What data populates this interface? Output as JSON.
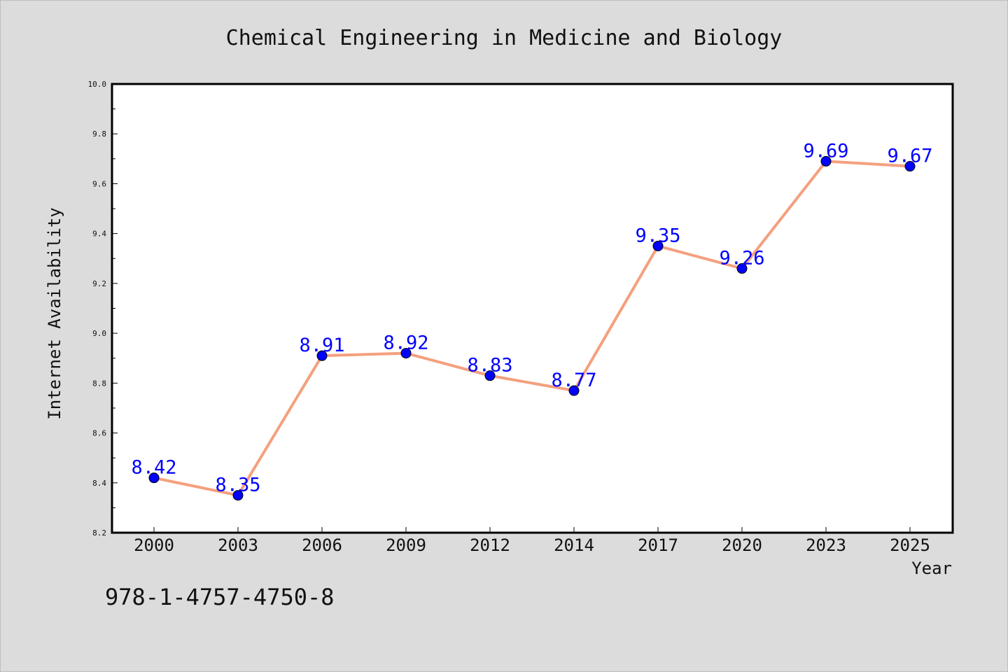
{
  "isbn_text": "978-1-4757-4750-8",
  "colors": {
    "background": "#dcdcdc",
    "plot_area": "#ffffff",
    "line": "#f4a07e",
    "marker": "#0000ff",
    "data_label": "#0000ff"
  },
  "chart_data": {
    "type": "line",
    "title": "Chemical Engineering in Medicine and Biology",
    "xlabel": "Year",
    "ylabel": "Internet Availability",
    "categories": [
      "2000",
      "2003",
      "2006",
      "2009",
      "2012",
      "2014",
      "2017",
      "2020",
      "2023",
      "2025"
    ],
    "series": [
      {
        "values": [
          8.42,
          8.35,
          8.91,
          8.92,
          8.83,
          8.77,
          9.35,
          9.26,
          9.69,
          9.67
        ],
        "data_labels": [
          "8.42",
          "8.35",
          "8.91",
          "8.92",
          "8.83",
          "8.77",
          "9.35",
          "9.26",
          "9.69",
          "9.67"
        ]
      }
    ],
    "ylim": [
      8.2,
      10.0
    ],
    "yticks": [
      "8.2",
      "8.4",
      "8.6",
      "8.8",
      "9.0",
      "9.2",
      "9.4",
      "9.6",
      "9.8",
      "10.0"
    ],
    "grid": false,
    "legend": "none"
  }
}
